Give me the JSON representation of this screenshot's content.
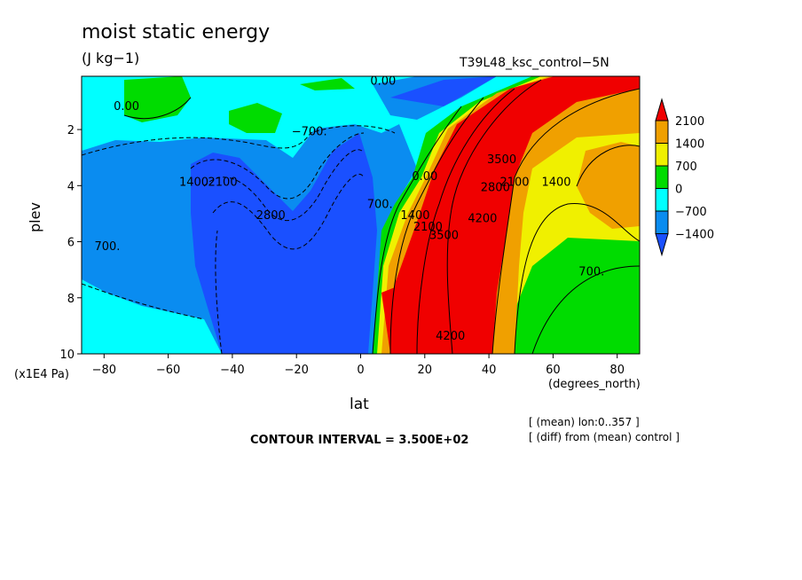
{
  "chart_data": {
    "type": "contour",
    "title": "moist static energy",
    "units": "(J kg−1)",
    "run_label": "T39L48_ksc_control−5N",
    "xlabel": "lat",
    "x_units": "(degrees_north)",
    "ylabel": "plev",
    "y_units": "(x1E4 Pa)",
    "x_ticks": [
      "−80",
      "−60",
      "−40",
      "−20",
      "0",
      "20",
      "40",
      "60",
      "80"
    ],
    "x_tick_values": [
      -80,
      -60,
      -40,
      -20,
      0,
      20,
      40,
      60,
      80
    ],
    "y_ticks": [
      "2",
      "4",
      "6",
      "8",
      "10"
    ],
    "y_tick_values": [
      2,
      4,
      6,
      8,
      10
    ],
    "xlim": [
      -87,
      87
    ],
    "ylim": [
      10,
      0.1
    ],
    "contour_interval_text": "CONTOUR INTERVAL = 3.500E+02",
    "notes": [
      "[ (mean) lon:0..357 ]",
      "[ (diff) from (mean) control ]"
    ],
    "colorbar": {
      "labels": [
        "2100",
        "1400",
        "700",
        "0",
        "−700",
        "−1400"
      ],
      "colors": [
        "#f00000",
        "#f0a000",
        "#f0f000",
        "#00dc00",
        "#00ffff",
        "#0a8cf0",
        "#1a50ff"
      ]
    },
    "contour_labels": [
      {
        "text": "0.00",
        "lat": -73,
        "plev": 1.3
      },
      {
        "text": "0.00",
        "lat": 7,
        "plev": 0.4
      },
      {
        "text": "−700.",
        "lat": -16,
        "plev": 2.2
      },
      {
        "text": "1400",
        "lat": -52,
        "plev": 4.0
      },
      {
        "text": "2100",
        "lat": -43,
        "plev": 4.0
      },
      {
        "text": "2800",
        "lat": -28,
        "plev": 5.2
      },
      {
        "text": "700.",
        "lat": -79,
        "plev": 6.3
      },
      {
        "text": "700.",
        "lat": 6,
        "plev": 4.8
      },
      {
        "text": "0.00",
        "lat": 20,
        "plev": 3.8
      },
      {
        "text": "1400",
        "lat": 17,
        "plev": 5.2
      },
      {
        "text": "2100",
        "lat": 21,
        "plev": 5.6
      },
      {
        "text": "3500",
        "lat": 26,
        "plev": 5.9
      },
      {
        "text": "4200",
        "lat": 38,
        "plev": 5.3
      },
      {
        "text": "2800",
        "lat": 42,
        "plev": 4.2
      },
      {
        "text": "3500",
        "lat": 44,
        "plev": 3.2
      },
      {
        "text": "2100",
        "lat": 48,
        "plev": 4.0
      },
      {
        "text": "1400",
        "lat": 61,
        "plev": 4.0
      },
      {
        "text": "700.",
        "lat": 72,
        "plev": 7.2
      },
      {
        "text": "4200",
        "lat": 28,
        "plev": 9.5
      }
    ]
  }
}
